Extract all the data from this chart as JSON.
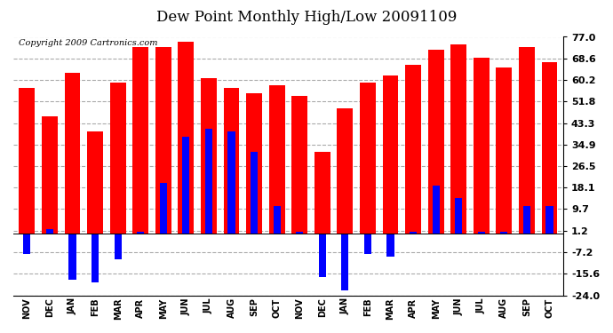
{
  "title": "Dew Point Monthly High/Low 20091109",
  "copyright": "Copyright 2009 Cartronics.com",
  "months": [
    "NOV",
    "DEC",
    "JAN",
    "FEB",
    "MAR",
    "APR",
    "MAY",
    "JUN",
    "JUL",
    "AUG",
    "SEP",
    "OCT",
    "NOV",
    "DEC",
    "JAN",
    "FEB",
    "MAR",
    "APR",
    "MAY",
    "JUN",
    "JUL",
    "AUG",
    "SEP",
    "OCT"
  ],
  "highs": [
    57,
    46,
    63,
    40,
    59,
    73,
    73,
    75,
    61,
    57,
    55,
    58,
    54,
    32,
    49,
    59,
    62,
    66,
    72,
    74,
    69,
    65,
    73,
    67
  ],
  "lows": [
    -8,
    2,
    -18,
    -19,
    -10,
    1,
    20,
    38,
    41,
    40,
    32,
    11,
    1,
    -17,
    -22,
    -8,
    -9,
    1,
    19,
    14,
    1,
    1,
    11,
    11
  ],
  "yticks": [
    77.0,
    68.6,
    60.2,
    51.8,
    43.3,
    34.9,
    26.5,
    18.1,
    9.7,
    1.2,
    -7.2,
    -15.6,
    -24.0
  ],
  "ymin": -24.0,
  "ymax": 77.0,
  "bar_color_high": "#ff0000",
  "bar_color_low": "#0000ff",
  "bg_color": "#ffffff",
  "plot_bg_color": "#ffffff",
  "title_fontsize": 12,
  "copyright_fontsize": 7
}
